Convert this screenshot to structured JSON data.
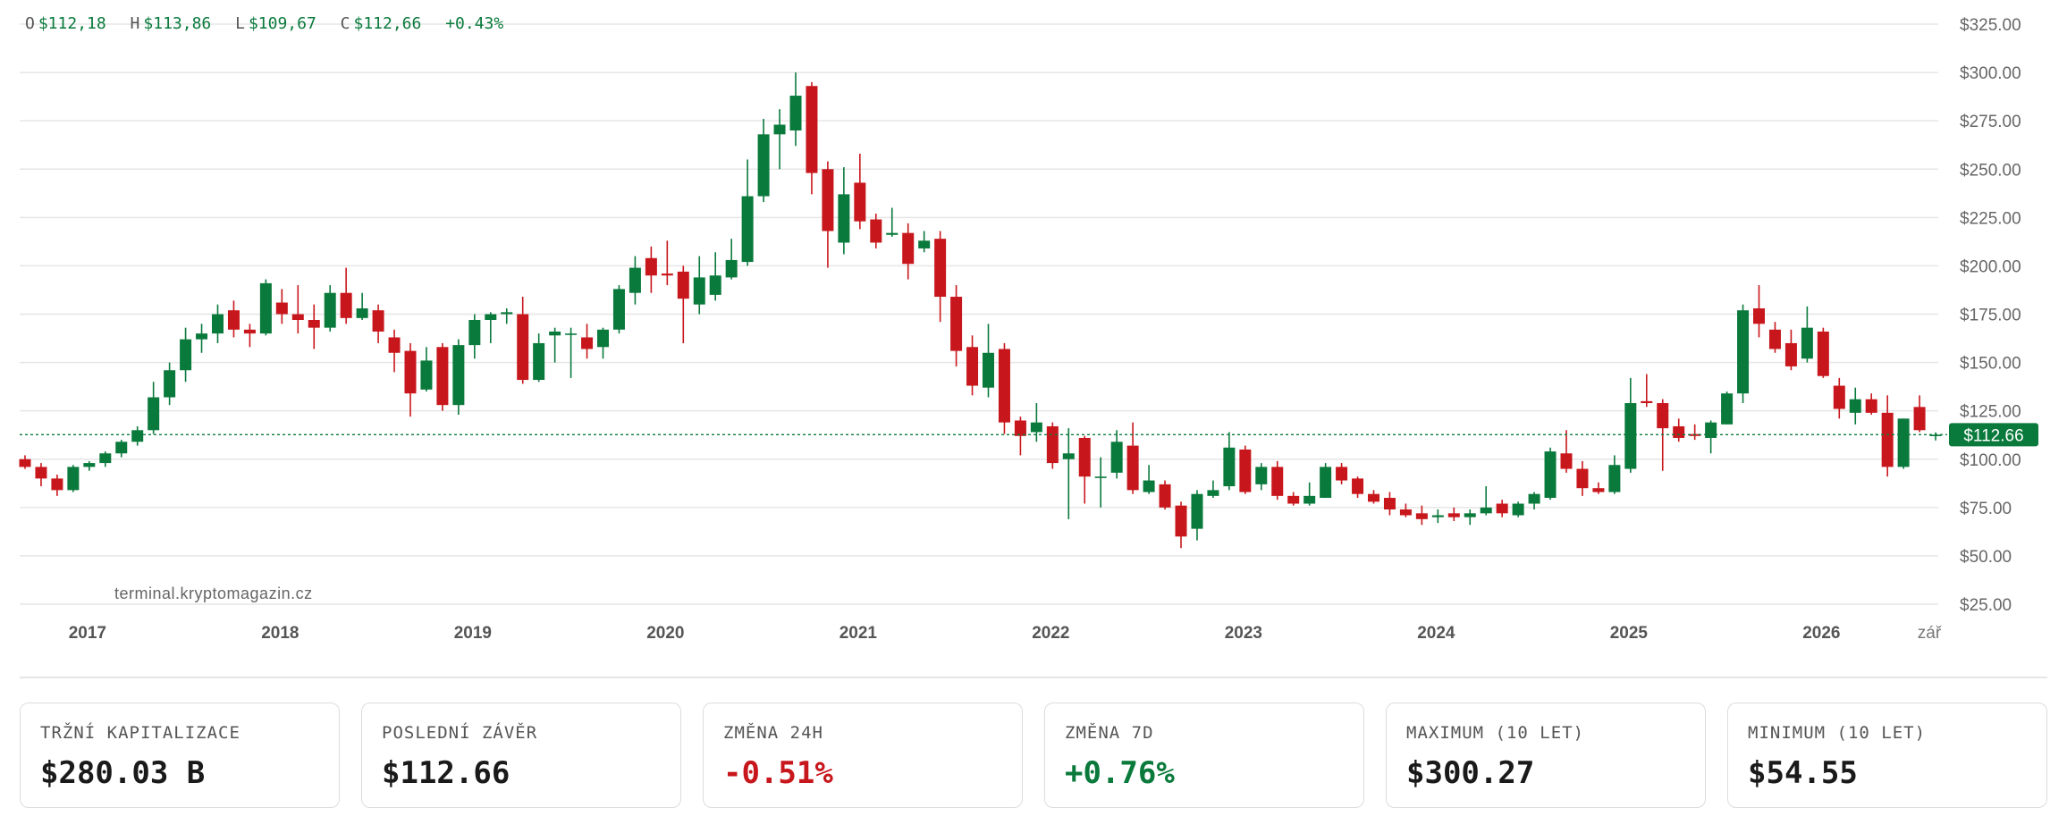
{
  "ohlc_header": {
    "o_label": "O",
    "o_value": "$112,18",
    "h_label": "H",
    "h_value": "$113,86",
    "l_label": "L",
    "l_value": "$109,67",
    "c_label": "C",
    "c_value": "$112,66",
    "change": "+0.43%"
  },
  "watermark": "terminal.kryptomagazin.cz",
  "colors": {
    "up": "#0a7a3c",
    "down": "#c8171c",
    "grid": "#e6e6e6",
    "price_line": "#0a7a3c"
  },
  "current_price_label": "$112.66",
  "stats": [
    {
      "label": "TRŽNÍ KAPITALIZACE",
      "value": "$280.03 B",
      "tone": "neutral"
    },
    {
      "label": "POSLEDNÍ ZÁVĚR",
      "value": "$112.66",
      "tone": "neutral"
    },
    {
      "label": "ZMĚNA 24H",
      "value": "-0.51%",
      "tone": "negative"
    },
    {
      "label": "ZMĚNA 7D",
      "value": "+0.76%",
      "tone": "positive"
    },
    {
      "label": "MAXIMUM (10 LET)",
      "value": "$300.27",
      "tone": "neutral"
    },
    {
      "label": "MINIMUM (10 LET)",
      "value": "$54.55",
      "tone": "neutral"
    }
  ],
  "chart_data": {
    "type": "candlestick",
    "interval": "monthly",
    "y_axis": {
      "min": 25,
      "max": 325,
      "side": "right",
      "ticks": [
        "$25.00",
        "$50.00",
        "$75.00",
        "$100.00",
        "$125.00",
        "$150.00",
        "$175.00",
        "$200.00",
        "$225.00",
        "$250.00",
        "$275.00",
        "$300.00",
        "$325.00"
      ],
      "tick_values": [
        25,
        50,
        75,
        100,
        125,
        150,
        175,
        200,
        225,
        250,
        275,
        300,
        325
      ]
    },
    "x_axis": {
      "labels": [
        {
          "text": "2017",
          "year": 2017
        },
        {
          "text": "2018",
          "year": 2018
        },
        {
          "text": "2019",
          "year": 2019
        },
        {
          "text": "2020",
          "year": 2020
        },
        {
          "text": "2021",
          "year": 2021
        },
        {
          "text": "2022",
          "year": 2022
        },
        {
          "text": "2023",
          "year": 2023
        },
        {
          "text": "2024",
          "year": 2024
        },
        {
          "text": "2025",
          "year": 2025
        },
        {
          "text": "2026",
          "year": 2026
        },
        {
          "text": "zář",
          "year": 2026.67
        }
      ]
    },
    "grid": true,
    "current_price": 112.66,
    "candles": [
      {
        "date": "2016-09",
        "o": 100,
        "h": 102,
        "l": 95,
        "c": 96
      },
      {
        "date": "2016-10",
        "o": 96,
        "h": 98,
        "l": 86,
        "c": 90
      },
      {
        "date": "2016-11",
        "o": 90,
        "h": 92,
        "l": 81,
        "c": 84
      },
      {
        "date": "2016-12",
        "o": 84,
        "h": 97,
        "l": 83,
        "c": 96
      },
      {
        "date": "2017-01",
        "o": 96,
        "h": 99,
        "l": 94,
        "c": 98
      },
      {
        "date": "2017-02",
        "o": 98,
        "h": 104,
        "l": 96,
        "c": 103
      },
      {
        "date": "2017-03",
        "o": 103,
        "h": 110,
        "l": 101,
        "c": 109
      },
      {
        "date": "2017-04",
        "o": 109,
        "h": 117,
        "l": 107,
        "c": 115
      },
      {
        "date": "2017-05",
        "o": 115,
        "h": 140,
        "l": 113,
        "c": 132
      },
      {
        "date": "2017-06",
        "o": 132,
        "h": 150,
        "l": 128,
        "c": 146
      },
      {
        "date": "2017-07",
        "o": 146,
        "h": 168,
        "l": 140,
        "c": 162
      },
      {
        "date": "2017-08",
        "o": 162,
        "h": 170,
        "l": 155,
        "c": 165
      },
      {
        "date": "2017-09",
        "o": 165,
        "h": 180,
        "l": 160,
        "c": 175
      },
      {
        "date": "2017-10",
        "o": 177,
        "h": 182,
        "l": 163,
        "c": 167
      },
      {
        "date": "2017-11",
        "o": 167,
        "h": 170,
        "l": 158,
        "c": 165
      },
      {
        "date": "2017-12",
        "o": 165,
        "h": 193,
        "l": 164,
        "c": 191
      },
      {
        "date": "2018-01",
        "o": 181,
        "h": 188,
        "l": 170,
        "c": 175
      },
      {
        "date": "2018-02",
        "o": 175,
        "h": 190,
        "l": 165,
        "c": 172
      },
      {
        "date": "2018-03",
        "o": 172,
        "h": 180,
        "l": 157,
        "c": 168
      },
      {
        "date": "2018-04",
        "o": 168,
        "h": 190,
        "l": 166,
        "c": 186
      },
      {
        "date": "2018-05",
        "o": 186,
        "h": 199,
        "l": 170,
        "c": 173
      },
      {
        "date": "2018-06",
        "o": 173,
        "h": 186,
        "l": 172,
        "c": 178
      },
      {
        "date": "2018-07",
        "o": 177,
        "h": 180,
        "l": 160,
        "c": 166
      },
      {
        "date": "2018-08",
        "o": 163,
        "h": 167,
        "l": 145,
        "c": 155
      },
      {
        "date": "2018-09",
        "o": 156,
        "h": 160,
        "l": 122,
        "c": 134
      },
      {
        "date": "2018-10",
        "o": 136,
        "h": 158,
        "l": 135,
        "c": 151
      },
      {
        "date": "2018-11",
        "o": 158,
        "h": 160,
        "l": 125,
        "c": 128
      },
      {
        "date": "2018-12",
        "o": 128,
        "h": 162,
        "l": 123,
        "c": 159
      },
      {
        "date": "2019-01",
        "o": 159,
        "h": 175,
        "l": 152,
        "c": 172
      },
      {
        "date": "2019-02",
        "o": 172,
        "h": 176,
        "l": 160,
        "c": 175
      },
      {
        "date": "2019-03",
        "o": 175,
        "h": 178,
        "l": 170,
        "c": 176
      },
      {
        "date": "2019-04",
        "o": 175,
        "h": 184,
        "l": 139,
        "c": 141
      },
      {
        "date": "2019-05",
        "o": 141,
        "h": 165,
        "l": 140,
        "c": 160
      },
      {
        "date": "2019-06",
        "o": 164,
        "h": 168,
        "l": 150,
        "c": 166
      },
      {
        "date": "2019-07",
        "o": 165,
        "h": 168,
        "l": 142,
        "c": 165
      },
      {
        "date": "2019-08",
        "o": 163,
        "h": 170,
        "l": 152,
        "c": 157
      },
      {
        "date": "2019-09",
        "o": 158,
        "h": 168,
        "l": 152,
        "c": 167
      },
      {
        "date": "2019-10",
        "o": 167,
        "h": 190,
        "l": 165,
        "c": 188
      },
      {
        "date": "2019-11",
        "o": 186,
        "h": 205,
        "l": 180,
        "c": 199
      },
      {
        "date": "2019-12",
        "o": 204,
        "h": 210,
        "l": 186,
        "c": 195
      },
      {
        "date": "2020-01",
        "o": 196,
        "h": 213,
        "l": 190,
        "c": 195
      },
      {
        "date": "2020-02",
        "o": 197,
        "h": 200,
        "l": 160,
        "c": 183
      },
      {
        "date": "2020-03",
        "o": 180,
        "h": 205,
        "l": 175,
        "c": 194
      },
      {
        "date": "2020-04",
        "o": 185,
        "h": 207,
        "l": 182,
        "c": 195
      },
      {
        "date": "2020-05",
        "o": 194,
        "h": 214,
        "l": 193,
        "c": 203
      },
      {
        "date": "2020-06",
        "o": 202,
        "h": 255,
        "l": 200,
        "c": 236
      },
      {
        "date": "2020-07",
        "o": 236,
        "h": 276,
        "l": 233,
        "c": 268
      },
      {
        "date": "2020-08",
        "o": 268,
        "h": 281,
        "l": 250,
        "c": 273
      },
      {
        "date": "2020-09",
        "o": 270,
        "h": 300,
        "l": 262,
        "c": 288
      },
      {
        "date": "2020-10",
        "o": 293,
        "h": 295,
        "l": 237,
        "c": 248
      },
      {
        "date": "2020-11",
        "o": 250,
        "h": 254,
        "l": 199,
        "c": 218
      },
      {
        "date": "2020-12",
        "o": 212,
        "h": 251,
        "l": 206,
        "c": 237
      },
      {
        "date": "2021-01",
        "o": 243,
        "h": 258,
        "l": 219,
        "c": 223
      },
      {
        "date": "2021-02",
        "o": 224,
        "h": 227,
        "l": 209,
        "c": 212
      },
      {
        "date": "2021-03",
        "o": 216,
        "h": 230,
        "l": 215,
        "c": 217
      },
      {
        "date": "2021-04",
        "o": 217,
        "h": 222,
        "l": 193,
        "c": 201
      },
      {
        "date": "2021-05",
        "o": 209,
        "h": 218,
        "l": 207,
        "c": 213
      },
      {
        "date": "2021-06",
        "o": 214,
        "h": 218,
        "l": 171,
        "c": 184
      },
      {
        "date": "2021-07",
        "o": 184,
        "h": 190,
        "l": 148,
        "c": 156
      },
      {
        "date": "2021-08",
        "o": 158,
        "h": 164,
        "l": 133,
        "c": 138
      },
      {
        "date": "2021-09",
        "o": 137,
        "h": 170,
        "l": 132,
        "c": 155
      },
      {
        "date": "2021-10",
        "o": 157,
        "h": 160,
        "l": 113,
        "c": 119
      },
      {
        "date": "2021-11",
        "o": 120,
        "h": 122,
        "l": 102,
        "c": 112
      },
      {
        "date": "2021-12",
        "o": 114,
        "h": 129,
        "l": 109,
        "c": 119
      },
      {
        "date": "2022-01",
        "o": 117,
        "h": 119,
        "l": 95,
        "c": 98
      },
      {
        "date": "2022-02",
        "o": 100,
        "h": 116,
        "l": 69,
        "c": 103
      },
      {
        "date": "2022-03",
        "o": 111,
        "h": 112,
        "l": 77,
        "c": 91
      },
      {
        "date": "2022-04",
        "o": 91,
        "h": 101,
        "l": 75,
        "c": 91
      },
      {
        "date": "2022-05",
        "o": 93,
        "h": 115,
        "l": 90,
        "c": 109
      },
      {
        "date": "2022-06",
        "o": 107,
        "h": 119,
        "l": 82,
        "c": 84
      },
      {
        "date": "2022-07",
        "o": 83,
        "h": 97,
        "l": 82,
        "c": 89
      },
      {
        "date": "2022-08",
        "o": 87,
        "h": 89,
        "l": 74,
        "c": 75
      },
      {
        "date": "2022-09",
        "o": 76,
        "h": 78,
        "l": 54,
        "c": 60
      },
      {
        "date": "2022-10",
        "o": 64,
        "h": 84,
        "l": 58,
        "c": 82
      },
      {
        "date": "2022-11",
        "o": 81,
        "h": 89,
        "l": 80,
        "c": 84
      },
      {
        "date": "2022-12",
        "o": 86,
        "h": 114,
        "l": 84,
        "c": 106
      },
      {
        "date": "2023-01",
        "o": 105,
        "h": 107,
        "l": 82,
        "c": 83
      },
      {
        "date": "2023-02",
        "o": 87,
        "h": 98,
        "l": 84,
        "c": 96
      },
      {
        "date": "2023-03",
        "o": 96,
        "h": 99,
        "l": 79,
        "c": 81
      },
      {
        "date": "2023-04",
        "o": 81,
        "h": 83,
        "l": 76,
        "c": 77
      },
      {
        "date": "2023-05",
        "o": 77,
        "h": 88,
        "l": 76,
        "c": 81
      },
      {
        "date": "2023-06",
        "o": 80,
        "h": 98,
        "l": 80,
        "c": 96
      },
      {
        "date": "2023-07",
        "o": 96,
        "h": 98,
        "l": 87,
        "c": 89
      },
      {
        "date": "2023-08",
        "o": 90,
        "h": 91,
        "l": 80,
        "c": 82
      },
      {
        "date": "2023-09",
        "o": 82,
        "h": 84,
        "l": 77,
        "c": 78
      },
      {
        "date": "2023-10",
        "o": 80,
        "h": 83,
        "l": 71,
        "c": 74
      },
      {
        "date": "2023-11",
        "o": 74,
        "h": 77,
        "l": 70,
        "c": 71
      },
      {
        "date": "2023-12",
        "o": 72,
        "h": 76,
        "l": 66,
        "c": 69
      },
      {
        "date": "2024-01",
        "o": 70,
        "h": 74,
        "l": 67,
        "c": 71
      },
      {
        "date": "2024-02",
        "o": 72,
        "h": 75,
        "l": 68,
        "c": 70
      },
      {
        "date": "2024-03",
        "o": 70,
        "h": 74,
        "l": 66,
        "c": 72
      },
      {
        "date": "2024-04",
        "o": 72,
        "h": 86,
        "l": 71,
        "c": 75
      },
      {
        "date": "2024-05",
        "o": 77,
        "h": 79,
        "l": 70,
        "c": 72
      },
      {
        "date": "2024-06",
        "o": 71,
        "h": 78,
        "l": 70,
        "c": 77
      },
      {
        "date": "2024-07",
        "o": 77,
        "h": 83,
        "l": 74,
        "c": 82
      },
      {
        "date": "2024-08",
        "o": 80,
        "h": 106,
        "l": 79,
        "c": 104
      },
      {
        "date": "2024-09",
        "o": 103,
        "h": 115,
        "l": 93,
        "c": 95
      },
      {
        "date": "2024-10",
        "o": 95,
        "h": 99,
        "l": 81,
        "c": 85
      },
      {
        "date": "2024-11",
        "o": 85,
        "h": 88,
        "l": 82,
        "c": 83
      },
      {
        "date": "2024-12",
        "o": 83,
        "h": 102,
        "l": 82,
        "c": 97
      },
      {
        "date": "2025-01",
        "o": 95,
        "h": 142,
        "l": 93,
        "c": 129
      },
      {
        "date": "2025-02",
        "o": 130,
        "h": 144,
        "l": 127,
        "c": 129
      },
      {
        "date": "2025-03",
        "o": 129,
        "h": 131,
        "l": 94,
        "c": 116
      },
      {
        "date": "2025-04",
        "o": 117,
        "h": 121,
        "l": 109,
        "c": 111
      },
      {
        "date": "2025-05",
        "o": 113,
        "h": 118,
        "l": 110,
        "c": 112
      },
      {
        "date": "2025-06",
        "o": 111,
        "h": 120,
        "l": 103,
        "c": 119
      },
      {
        "date": "2025-07",
        "o": 118,
        "h": 135,
        "l": 118,
        "c": 134
      },
      {
        "date": "2025-08",
        "o": 134,
        "h": 180,
        "l": 129,
        "c": 177
      },
      {
        "date": "2025-09",
        "o": 178,
        "h": 190,
        "l": 163,
        "c": 170
      },
      {
        "date": "2025-10",
        "o": 167,
        "h": 171,
        "l": 155,
        "c": 157
      },
      {
        "date": "2025-11",
        "o": 160,
        "h": 167,
        "l": 146,
        "c": 148
      },
      {
        "date": "2025-12",
        "o": 152,
        "h": 179,
        "l": 150,
        "c": 168
      },
      {
        "date": "2026-01",
        "o": 166,
        "h": 168,
        "l": 142,
        "c": 143
      },
      {
        "date": "2026-02",
        "o": 138,
        "h": 142,
        "l": 121,
        "c": 126
      },
      {
        "date": "2026-03",
        "o": 124,
        "h": 137,
        "l": 118,
        "c": 131
      },
      {
        "date": "2026-04",
        "o": 131,
        "h": 134,
        "l": 123,
        "c": 124
      },
      {
        "date": "2026-05",
        "o": 124,
        "h": 133,
        "l": 91,
        "c": 96
      },
      {
        "date": "2026-06",
        "o": 96,
        "h": 121,
        "l": 95,
        "c": 121
      },
      {
        "date": "2026-07",
        "o": 127,
        "h": 133,
        "l": 114,
        "c": 115
      },
      {
        "date": "2026-08",
        "o": 112.18,
        "h": 113.86,
        "l": 109.67,
        "c": 112.66
      }
    ]
  }
}
